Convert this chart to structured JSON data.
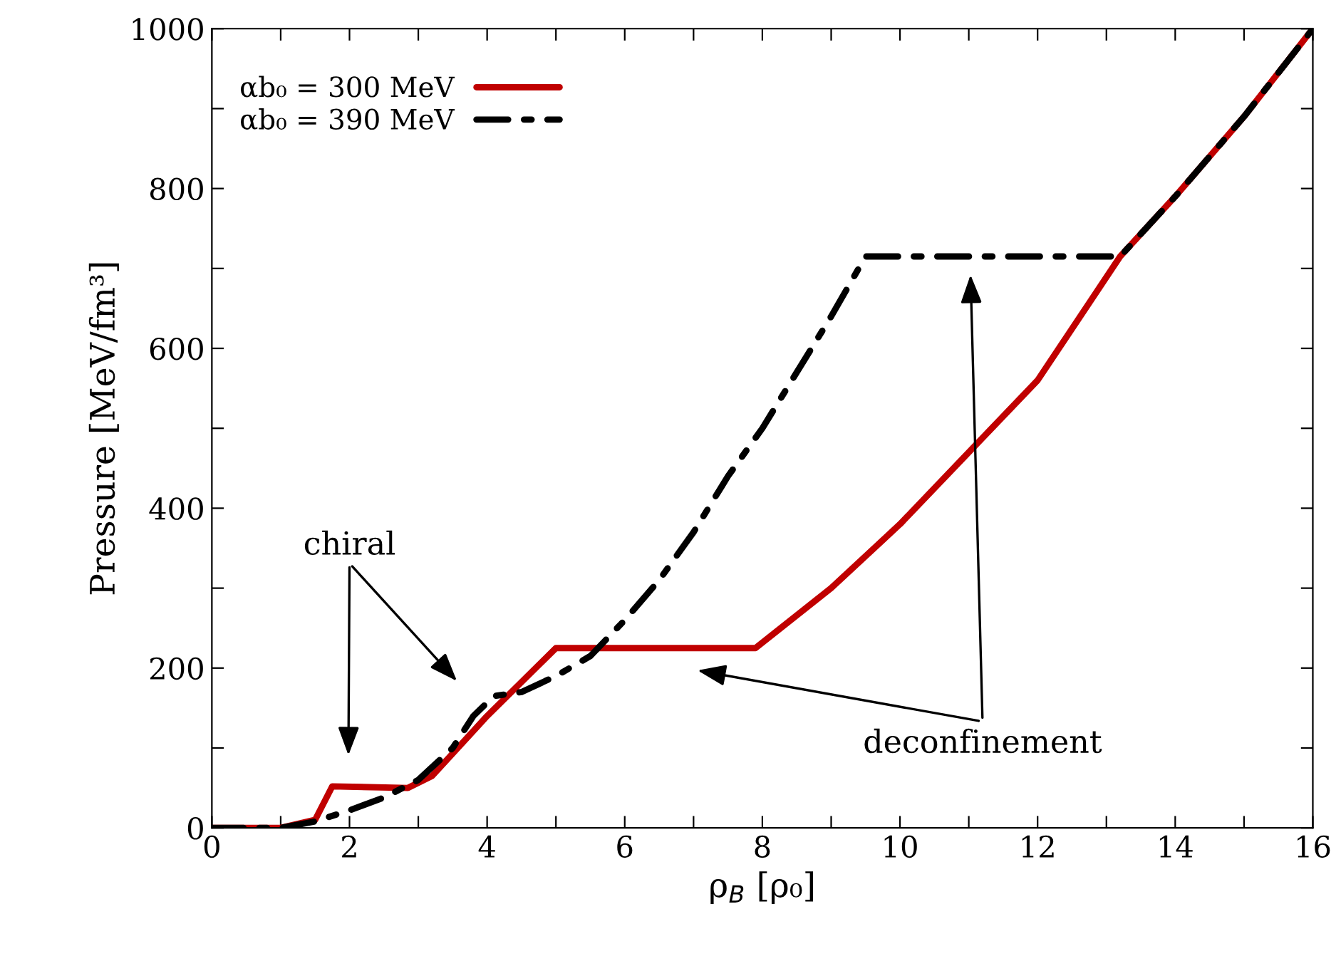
{
  "chart_data": {
    "type": "line",
    "xlabel": "ρ$_{B}$ [ρ₀]",
    "ylabel": "Pressure [MeV/fm³]",
    "xlim": [
      0,
      16
    ],
    "ylim": [
      0,
      1000
    ],
    "xticks": [
      0,
      {
        "value": 1,
        "label": null
      },
      2,
      {
        "value": 3,
        "label": null
      },
      4,
      {
        "value": 5,
        "label": null
      },
      6,
      {
        "value": 7,
        "label": null
      },
      8,
      {
        "value": 9,
        "label": null
      },
      10,
      {
        "value": 11,
        "label": null
      },
      12,
      {
        "value": 13,
        "label": null
      },
      14,
      {
        "value": 15,
        "label": null
      },
      16
    ],
    "yticks": [
      0,
      {
        "value": 100,
        "label": null
      },
      200,
      {
        "value": 300,
        "label": null
      },
      400,
      {
        "value": 500,
        "label": null
      },
      600,
      {
        "value": 700,
        "label": null
      },
      800,
      {
        "value": 900,
        "label": null
      },
      1000
    ],
    "grid": false,
    "legend": "top left",
    "series": [
      {
        "name": "αb₀ = 300 MeV",
        "color": "#c00000",
        "line_style": "solid",
        "x": [
          0,
          1,
          1.5,
          1.75,
          2.85,
          3.2,
          4,
          5,
          7.9,
          9,
          10,
          11,
          12,
          13.2,
          14,
          15,
          16
        ],
        "values": [
          0,
          0,
          10,
          52,
          50,
          65,
          140,
          225,
          225,
          300,
          380,
          470,
          560,
          715,
          790,
          890,
          1000
        ]
      },
      {
        "name": "αb₀ = 390 MeV",
        "color": "#000000",
        "line_style": "dashdot",
        "x": [
          0,
          1,
          1.5,
          2,
          2.5,
          3,
          3.5,
          3.8,
          4.1,
          4.5,
          5,
          5.5,
          6,
          6.5,
          7,
          7.5,
          8,
          8.5,
          9,
          9.5,
          13.2,
          14,
          15,
          16
        ],
        "values": [
          0,
          0,
          8,
          22,
          38,
          60,
          100,
          140,
          165,
          170,
          190,
          215,
          260,
          310,
          370,
          440,
          500,
          570,
          640,
          715,
          715,
          790,
          890,
          1000
        ]
      }
    ],
    "annotations": [
      "chiral",
      "deconfinement"
    ]
  }
}
